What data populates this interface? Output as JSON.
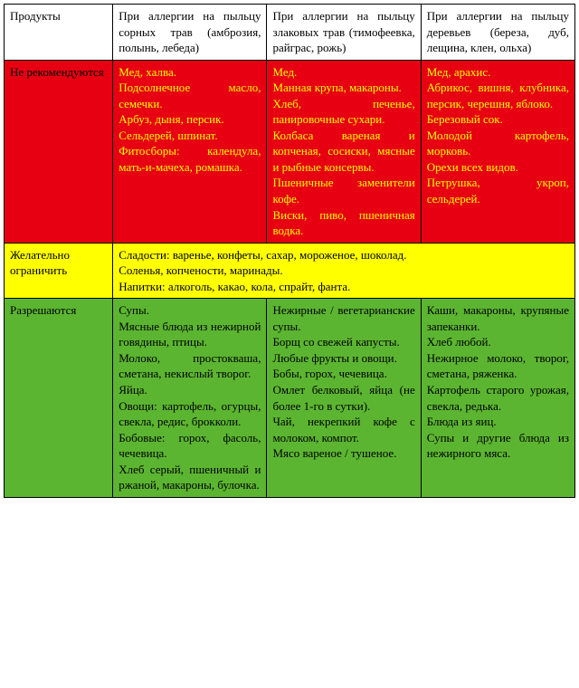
{
  "colors": {
    "red_bg": "#e60012",
    "red_text": "#ffff00",
    "yellow_bg": "#ffff00",
    "green_bg": "#5cb531",
    "border": "#000000",
    "header_bg": "#ffffff"
  },
  "header": {
    "c0": "Продукты",
    "c1": "При аллергии на пыльцу сорных трав (амброзия, полынь, лебеда)",
    "c2": "При аллергии на пыльцу злаковых трав (тимофеевка, райграс, рожь)",
    "c3": "При аллергии на пыльцу деревьев (береза, дуб, лещина, клен, ольха)"
  },
  "not_recommended": {
    "label": "Не рекомендуются",
    "c1": "Мед, халва.\nПодсолнечное масло, семечки.\nАрбуз, дыня, персик.\nСельдерей, шпинат.\nФитосборы: календула, мать-и-мачеха, ромашка.",
    "c2": "Мед.\nМанная крупа, макароны.\nХлеб, печенье, панировочные сухари.\nКолбаса вареная и копченая, сосиски, мясные и рыбные консервы.\nПшеничные заменители кофе.\nВиски, пиво, пшеничная водка.",
    "c3": "Мед, арахис.\nАбрикос, вишня, клубника, персик, черешня, яблоко.\nБерезовый сок.\nМолодой картофель, морковь.\nОрехи всех видов.\nПетрушка, укроп, сельдерей."
  },
  "limit": {
    "label": "Желательно ограничить",
    "text": "Сладости: варенье, конфеты, сахар, мороженое, шоколад.\nСоленья, копчености, маринады.\nНапитки: алкоголь, какао, кола, спрайт, фанта."
  },
  "allowed": {
    "label": "Разрешаются",
    "c1": "Супы.\nМясные блюда из нежирной говядины, птицы.\nМолоко, простокваша, сметана, некислый творог.\nЯйца.\nОвощи: картофель, огурцы, свекла, редис, брокколи.\nБобовые: горох, фасоль, чечевица.\nХлеб серый, пшеничный и ржаной, макароны, булочка.",
    "c2": "Нежирные / вегетарианские супы.\nБорщ со свежей капусты.\nЛюбые фрукты и овощи.\nБобы, горох, чечевица.\nОмлет белковый, яйца (не более 1-го в сутки).\nЧай, некрепкий кофе с молоком, компот.\nМясо вареное / тушеное.",
    "c3": "Каши, макароны, крупяные запеканки.\nХлеб любой.\nНежирное молоко, творог, сметана, ряженка.\nКартофель старого урожая, свекла, редька.\nБлюда из яиц.\nСупы и другие блюда из нежирного мяса."
  }
}
